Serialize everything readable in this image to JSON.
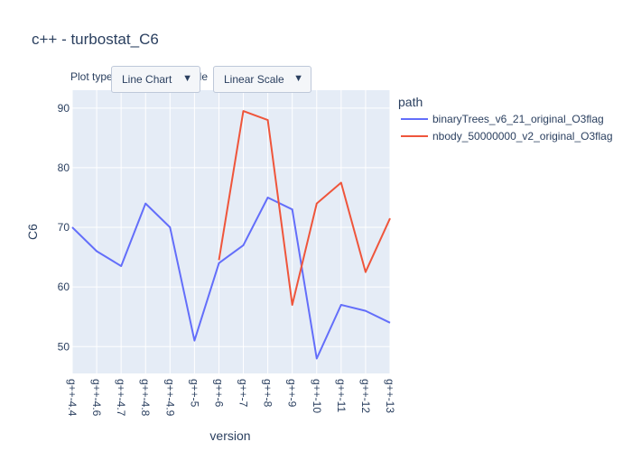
{
  "title": "c++ - turbostat_C6",
  "controls": {
    "plot_type_label": "Plot type",
    "scale_label": "Scale",
    "plot_type_value": "Line Chart",
    "scale_value": "Linear Scale"
  },
  "chart_data": {
    "type": "line",
    "title": "c++ - turbostat_C6",
    "xlabel": "version",
    "ylabel": "C6",
    "categories": [
      "g++-4.4",
      "g++-4.6",
      "g++-4.7",
      "g++-4.8",
      "g++-4.9",
      "g++-5",
      "g++-6",
      "g++-7",
      "g++-8",
      "g++-9",
      "g++-10",
      "g++-11",
      "g++-12",
      "g++-13"
    ],
    "ylim": [
      45.5,
      93
    ],
    "yticks": [
      50,
      60,
      70,
      80,
      90
    ],
    "grid": true,
    "legend": {
      "title": "path",
      "placement": "right"
    },
    "series": [
      {
        "name": "binaryTrees_v6_21_original_O3flag",
        "color": "#636efa",
        "values": [
          70,
          66,
          63.5,
          74,
          70,
          51,
          64,
          67,
          75,
          73,
          48,
          57,
          56,
          54
        ]
      },
      {
        "name": "nbody_50000000_v2_original_O3flag",
        "color": "#ef553b",
        "values": [
          null,
          null,
          null,
          null,
          null,
          null,
          64.5,
          89.5,
          88,
          57,
          74,
          77.5,
          62.5,
          71.5
        ]
      }
    ]
  }
}
